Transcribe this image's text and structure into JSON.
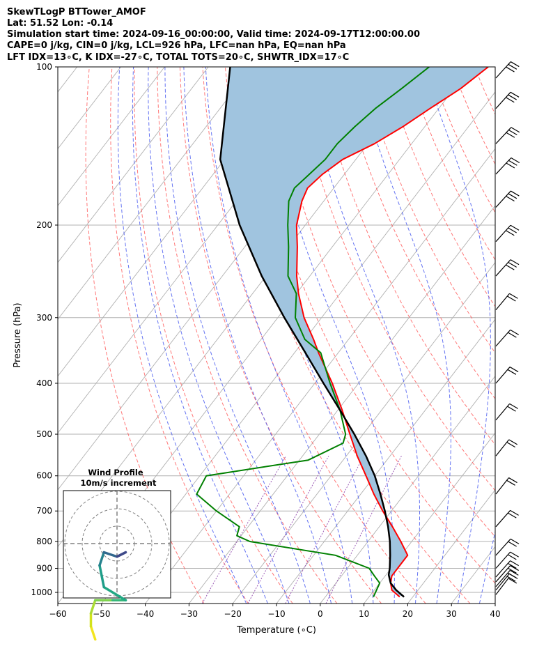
{
  "header": {
    "line1": "SkewTLogP BTTower_AMOF",
    "line2": "Lat: 51.52   Lon: -0.14",
    "line3": "Simulation start time: 2024-09-16_00:00:00, Valid time: 2024-09-17T12:00:00.00",
    "line4": "CAPE=0 j/kg, CIN=0 j/kg, LCL=926 hPa, LFC=nan hPa, EQ=nan hPa",
    "line5": "LFT IDX=13∘C, K IDX=-27∘C, TOTAL TOTS=20∘C, SHWTR_IDX=17∘C"
  },
  "chart_data": {
    "type": "line",
    "xlabel": "Temperature (∘C)",
    "ylabel": "Pressure (hPa)",
    "xlim": [
      -60,
      40
    ],
    "ylim": [
      1050,
      100
    ],
    "yscale": "log",
    "skew": true,
    "grid": true,
    "x_ticks": [
      -60,
      -50,
      -40,
      -30,
      -20,
      -10,
      0,
      10,
      20,
      30,
      40
    ],
    "x_tick_labels": [
      "−60",
      "−50",
      "−40",
      "−30",
      "−20",
      "−10",
      "0",
      "10",
      "20",
      "30",
      "40"
    ],
    "y_ticks": [
      100,
      200,
      300,
      400,
      500,
      600,
      700,
      800,
      900,
      1000
    ],
    "y_tick_labels": [
      "100",
      "200",
      "300",
      "400",
      "500",
      "600",
      "700",
      "800",
      "900",
      "1000"
    ],
    "colors": {
      "temperature": "#ff0000",
      "dewpoint": "#008000",
      "parcel": "#000000",
      "shade": "#a0c4df",
      "dry_adiabat": "#ff6060",
      "moist_adiabat": "#4a5cf0",
      "mixing_ratio": "#9b59b6",
      "isotherm": "#b0b0b0"
    },
    "series": [
      {
        "key": "temperature",
        "p": [
          1020,
          990,
          960,
          930,
          900,
          870,
          850,
          800,
          750,
          700,
          650,
          600,
          550,
          500,
          450,
          400,
          350,
          330,
          300,
          270,
          250,
          220,
          200,
          180,
          170,
          160,
          150,
          140,
          130,
          120,
          110,
          100
        ],
        "t": [
          17,
          14,
          12.5,
          11.5,
          11.5,
          11.5,
          11.5,
          7.5,
          3,
          -2,
          -7,
          -12,
          -17.5,
          -23,
          -29,
          -36,
          -44.5,
          -48,
          -54,
          -59.5,
          -63,
          -68,
          -72,
          -75,
          -76,
          -75,
          -73,
          -68.5,
          -65,
          -62,
          -58.5,
          -56
        ]
      },
      {
        "key": "dewpoint",
        "p": [
          1020,
          990,
          960,
          930,
          900,
          850,
          800,
          780,
          750,
          700,
          650,
          600,
          560,
          520,
          500,
          450,
          400,
          350,
          330,
          300,
          270,
          250,
          220,
          200,
          180,
          170,
          160,
          150,
          140,
          130,
          120,
          110,
          100
        ],
        "t": [
          11,
          10.5,
          10,
          7.5,
          5,
          -5,
          -27,
          -31,
          -32,
          -40,
          -47.5,
          -48.5,
          -28,
          -23,
          -24,
          -29.5,
          -36.5,
          -44,
          -50,
          -56,
          -60,
          -65,
          -70,
          -74,
          -78,
          -79,
          -78,
          -77,
          -77,
          -76,
          -74.5,
          -72,
          -69.5
        ]
      },
      {
        "key": "parcel",
        "p": [
          1020,
          990,
          960,
          926,
          900,
          850,
          800,
          750,
          700,
          650,
          600,
          550,
          500,
          450,
          400,
          350,
          300,
          250,
          200,
          150,
          100
        ],
        "t": [
          18,
          15,
          12.5,
          10.6,
          9.7,
          7.5,
          5,
          2,
          -1.5,
          -5.5,
          -10,
          -15.5,
          -22,
          -29.5,
          -38,
          -47.5,
          -58.5,
          -71,
          -85,
          -101,
          -115
        ]
      }
    ],
    "wind_barbs": [
      {
        "p": 1010,
        "u": 3,
        "v": 1
      },
      {
        "p": 990,
        "u": 4,
        "v": 0.5
      },
      {
        "p": 975,
        "u": 5,
        "v": 0
      },
      {
        "p": 955,
        "u": 5,
        "v": -0.5
      },
      {
        "p": 935,
        "u": 4.5,
        "v": -1
      },
      {
        "p": 900,
        "u": 4,
        "v": -1.5
      },
      {
        "p": 850,
        "u": 4,
        "v": -2
      },
      {
        "p": 750,
        "u": 3.5,
        "v": -2
      },
      {
        "p": 650,
        "u": 4,
        "v": 1.5
      },
      {
        "p": 550,
        "u": 4.5,
        "v": 2
      },
      {
        "p": 470,
        "u": 5,
        "v": 1
      },
      {
        "p": 400,
        "u": 6,
        "v": 1.5
      },
      {
        "p": 340,
        "u": 6,
        "v": 0.5
      },
      {
        "p": 290,
        "u": 4,
        "v": 0
      },
      {
        "p": 250,
        "u": 7,
        "v": 1
      },
      {
        "p": 215,
        "u": 7,
        "v": 1
      },
      {
        "p": 185,
        "u": 7,
        "v": 0.5
      },
      {
        "p": 160,
        "u": 8,
        "v": 0.5
      },
      {
        "p": 140,
        "u": 8,
        "v": 0.5
      },
      {
        "p": 120,
        "u": 7,
        "v": 1
      },
      {
        "p": 105,
        "u": 8,
        "v": 1.5
      }
    ],
    "hodograph": {
      "title": "Wind Profile",
      "subtitle": "10m/s increment",
      "points": [
        {
          "u": -5,
          "v": -22
        },
        {
          "u": -6,
          "v": -19
        },
        {
          "u": -6,
          "v": -16
        },
        {
          "u": -5,
          "v": -13
        },
        {
          "u": -1,
          "v": -13
        },
        {
          "u": 2,
          "v": -13
        },
        {
          "u": -3,
          "v": -10
        },
        {
          "u": -4,
          "v": -5
        },
        {
          "u": -3,
          "v": -2
        },
        {
          "u": 0,
          "v": -3
        },
        {
          "u": 2,
          "v": -2
        }
      ]
    }
  }
}
